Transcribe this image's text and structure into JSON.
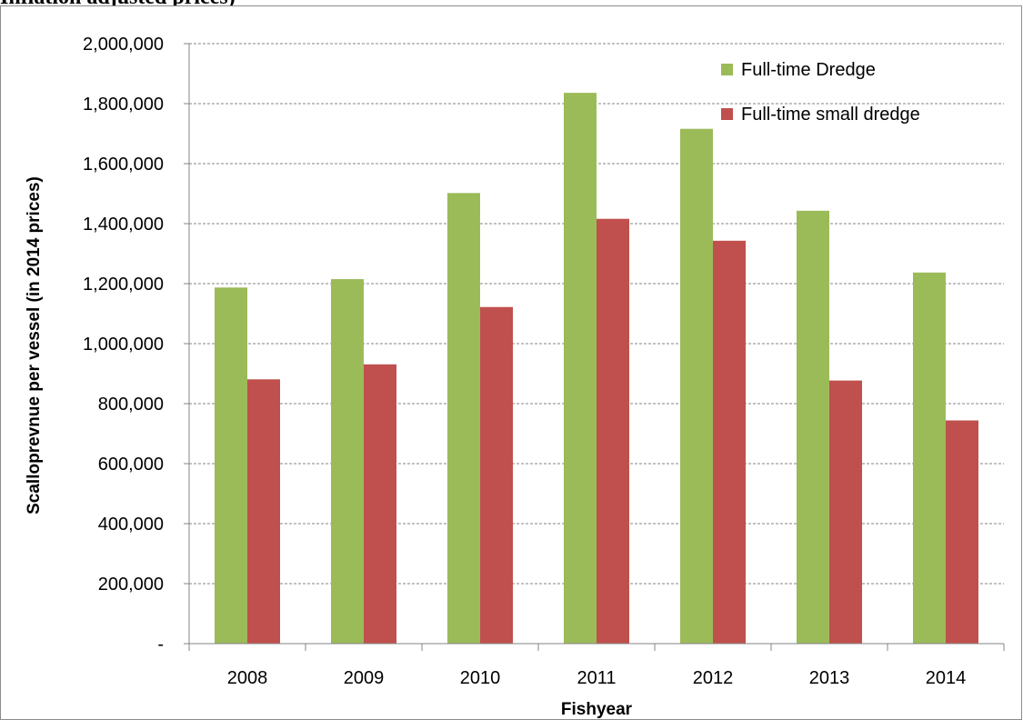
{
  "caption": "Inflation adjusted prices)",
  "colors": {
    "series1": "#9bbb59",
    "series2": "#c0504d",
    "grid": "#868686",
    "axis": "#868686"
  },
  "chart_data": {
    "type": "bar",
    "title": "",
    "xlabel": "Fishyear",
    "ylabel": "Scalloprevnue per vessel (in 2014 prices)",
    "categories": [
      "2008",
      "2009",
      "2010",
      "2011",
      "2012",
      "2013",
      "2014"
    ],
    "ylim": [
      0,
      2000000
    ],
    "yticks": [
      0,
      200000,
      400000,
      600000,
      800000,
      1000000,
      1200000,
      1400000,
      1600000,
      1800000,
      2000000
    ],
    "ytick_labels": [
      "-",
      "200,000",
      "400,000",
      "600,000",
      "800,000",
      "1,000,000",
      "1,200,000",
      "1,400,000",
      "1,600,000",
      "1,800,000",
      "2,000,000"
    ],
    "grid": true,
    "legend_position": "top-right",
    "series": [
      {
        "name": "Full-time Dredge",
        "color": "#9bbb59",
        "values": [
          1187000,
          1215000,
          1502000,
          1836000,
          1716000,
          1443000,
          1237000
        ]
      },
      {
        "name": "Full-time small dredge",
        "color": "#c0504d",
        "values": [
          881000,
          931000,
          1122000,
          1416000,
          1343000,
          877000,
          744000
        ]
      }
    ]
  }
}
